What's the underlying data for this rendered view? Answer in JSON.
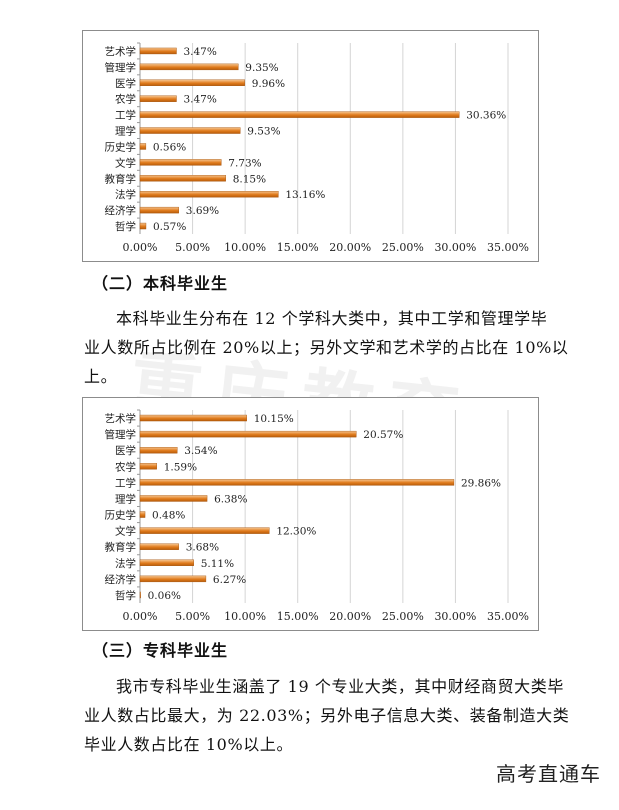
{
  "charts": [
    {
      "chart_data": {
        "type": "bar",
        "orientation": "horizontal",
        "categories": [
          "艺术学",
          "管理学",
          "医学",
          "农学",
          "工学",
          "理学",
          "历史学",
          "文学",
          "教育学",
          "法学",
          "经济学",
          "哲学"
        ],
        "values": [
          3.47,
          9.35,
          9.96,
          3.47,
          30.36,
          9.53,
          0.56,
          7.73,
          8.15,
          13.16,
          3.69,
          0.57
        ],
        "value_labels": [
          "3.47%",
          "9.35%",
          "9.96%",
          "3.47%",
          "30.36%",
          "9.53%",
          "0.56%",
          "7.73%",
          "8.15%",
          "13.16%",
          "3.69%",
          "0.57%"
        ],
        "xticks": [
          "0.00%",
          "5.00%",
          "10.00%",
          "15.00%",
          "20.00%",
          "25.00%",
          "30.00%",
          "35.00%"
        ],
        "xlim": [
          0,
          35
        ],
        "grid": "vertical"
      }
    },
    {
      "chart_data": {
        "type": "bar",
        "orientation": "horizontal",
        "categories": [
          "艺术学",
          "管理学",
          "医学",
          "农学",
          "工学",
          "理学",
          "历史学",
          "文学",
          "教育学",
          "法学",
          "经济学",
          "哲学"
        ],
        "values": [
          10.15,
          20.57,
          3.54,
          1.59,
          29.86,
          6.38,
          0.48,
          12.3,
          3.68,
          5.11,
          6.27,
          0.06
        ],
        "value_labels": [
          "10.15%",
          "20.57%",
          "3.54%",
          "1.59%",
          "29.86%",
          "6.38%",
          "0.48%",
          "12.30%",
          "3.68%",
          "5.11%",
          "6.27%",
          "0.06%"
        ],
        "xticks": [
          "0.00%",
          "5.00%",
          "10.00%",
          "15.00%",
          "20.00%",
          "25.00%",
          "30.00%",
          "35.00%"
        ],
        "xlim": [
          0,
          35
        ],
        "grid": "vertical"
      }
    }
  ],
  "colors": {
    "bar": "#e07b1c",
    "bar_light": "#f6c590",
    "grid": "#d4d4d4",
    "axis": "#9a9a9a"
  },
  "section1": {
    "heading": "（二）本科毕业生",
    "lines": [
      "本科毕业生分布在 12 个学科大类中，其中工学和管理学毕",
      "业人数所占比例在 20%以上；另外文学和艺术学的占比在 10%以",
      "上。"
    ]
  },
  "section2": {
    "heading": "（三）专科毕业生",
    "lines": [
      "我市专科毕业生涵盖了 19 个专业大类，其中财经商贸大类毕",
      "业人数占比最大，为 22.03%；另外电子信息大类、装备制造大类",
      "毕业人数占比在 10%以上。"
    ]
  },
  "watermark": "重庆教育",
  "brand": "高考直通车"
}
